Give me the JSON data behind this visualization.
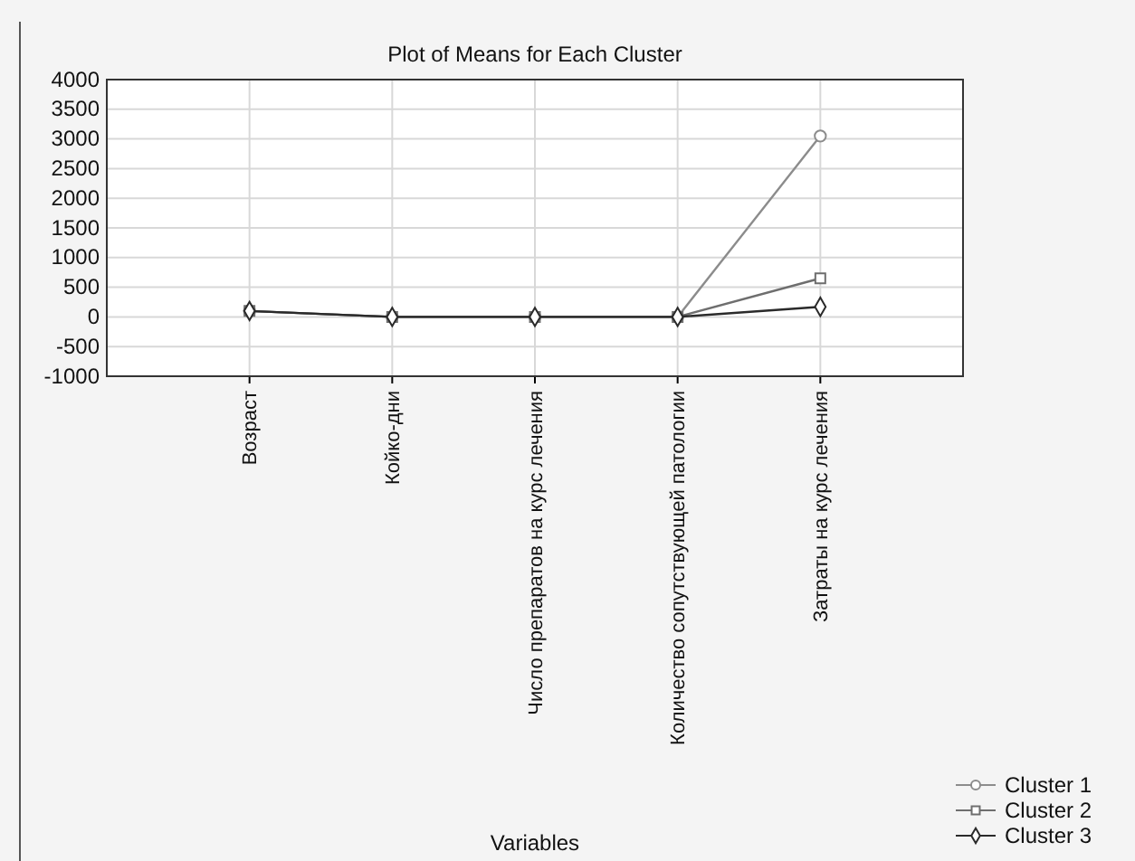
{
  "chart_data": {
    "type": "line",
    "title": "Plot of Means for Each Cluster",
    "xlabel": "Variables",
    "categories": [
      "Возраст",
      "Койко-дни",
      "Число препаратов на курс лечения",
      "Количество сопутствующей патологии",
      "Затраты на курс лечения"
    ],
    "series": [
      {
        "name": "Cluster  1",
        "color": "#8c8c8c",
        "marker": "circle",
        "values": [
          100,
          0,
          0,
          0,
          3050
        ]
      },
      {
        "name": "Cluster  2",
        "color": "#6e6e6e",
        "marker": "square",
        "values": [
          100,
          0,
          0,
          0,
          650
        ]
      },
      {
        "name": "Cluster  3",
        "color": "#2a2a2a",
        "marker": "diamond",
        "values": [
          100,
          0,
          0,
          0,
          170
        ]
      }
    ],
    "ylim": [
      -1000,
      4000
    ],
    "yticks": [
      -1000,
      -500,
      0,
      500,
      1000,
      1500,
      2000,
      2500,
      3000,
      3500,
      4000
    ],
    "grid": true,
    "legend": "bottom right",
    "line_style": "solid"
  }
}
